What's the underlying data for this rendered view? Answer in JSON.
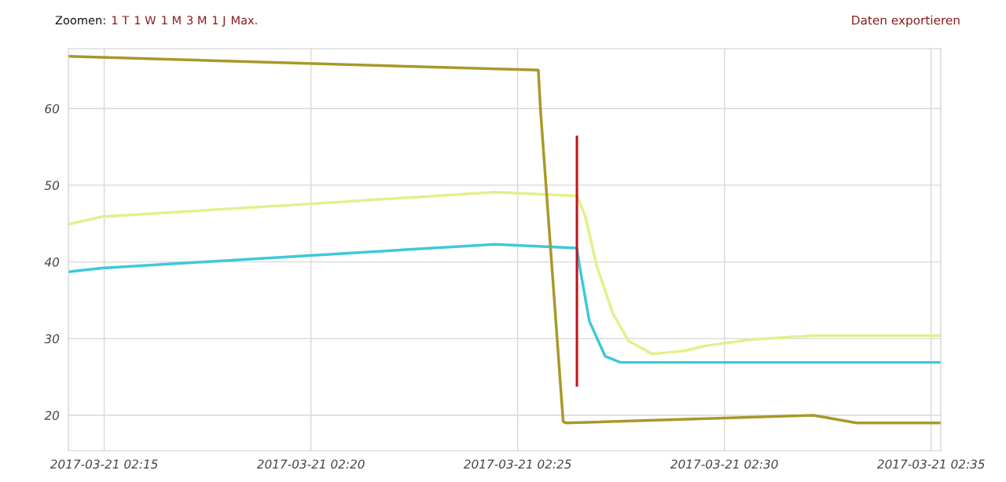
{
  "chart_data": {
    "type": "line",
    "annotations": [
      "Zoomen:",
      "1 T",
      "1 W",
      "1 M",
      "3 M",
      "1 J",
      "Max.",
      "Daten exportieren"
    ],
    "xlim": [
      "2017-03-21T02:14:08",
      "2017-03-21T02:35:14"
    ],
    "ylim": [
      15.4,
      67.8
    ],
    "xticks": [
      {
        "value": "2017-03-21T02:15",
        "label": "2017-03-21 02:15"
      },
      {
        "value": "2017-03-21T02:20",
        "label": "2017-03-21 02:20"
      },
      {
        "value": "2017-03-21T02:25",
        "label": "2017-03-21 02:25"
      },
      {
        "value": "2017-03-21T02:30",
        "label": "2017-03-21 02:30"
      },
      {
        "value": "2017-03-21T02:35",
        "label": "2017-03-21 02:35"
      }
    ],
    "yticks": [
      20,
      30,
      40,
      50,
      60
    ],
    "grid": true,
    "legend": false,
    "marker": "none",
    "line_style": "solid",
    "series": [
      {
        "color": "#e6ee8c",
        "x": [
          "2017-03-21T02:14:08",
          "2017-03-21T02:14:22",
          "2017-03-21T02:14:57",
          "2017-03-21T02:20:05",
          "2017-03-21T02:24:27",
          "2017-03-21T02:26:26",
          "2017-03-21T02:26:38",
          "2017-03-21T02:26:55",
          "2017-03-21T02:27:18",
          "2017-03-21T02:27:41",
          "2017-03-21T02:28:15",
          "2017-03-21T02:29:01",
          "2017-03-21T02:29:35",
          "2017-03-21T02:30:43",
          "2017-03-21T02:32:09",
          "2017-03-21T02:35:14"
        ],
        "values": [
          44.9,
          45.2,
          45.9,
          47.6,
          49.1,
          48.6,
          46.0,
          39.4,
          33.3,
          29.7,
          28.0,
          28.4,
          29.1,
          29.9,
          30.4,
          30.4
        ]
      },
      {
        "color": "#3ec8dc",
        "x": [
          "2017-03-21T02:14:08",
          "2017-03-21T02:14:57",
          "2017-03-21T02:24:27",
          "2017-03-21T02:26:26",
          "2017-03-21T02:26:30",
          "2017-03-21T02:26:44",
          "2017-03-21T02:27:07",
          "2017-03-21T02:27:29",
          "2017-03-21T02:35:14"
        ],
        "values": [
          38.7,
          39.2,
          42.3,
          41.8,
          39.4,
          32.3,
          27.7,
          26.9,
          26.9
        ]
      },
      {
        "color": "#a8982a",
        "x": [
          "2017-03-21T02:14:08",
          "2017-03-21T02:25:30",
          "2017-03-21T02:25:33",
          "2017-03-21T02:26:06",
          "2017-03-21T02:26:10",
          "2017-03-21T02:32:09",
          "2017-03-21T02:33:12",
          "2017-03-21T02:35:14"
        ],
        "values": [
          66.8,
          65.0,
          60.0,
          19.2,
          19.0,
          20.0,
          19.0,
          19.0
        ]
      },
      {
        "color": "#c0141e",
        "x": [
          "2017-03-21T02:26:26",
          "2017-03-21T02:26:26"
        ],
        "values": [
          56.3,
          23.9
        ]
      }
    ]
  }
}
